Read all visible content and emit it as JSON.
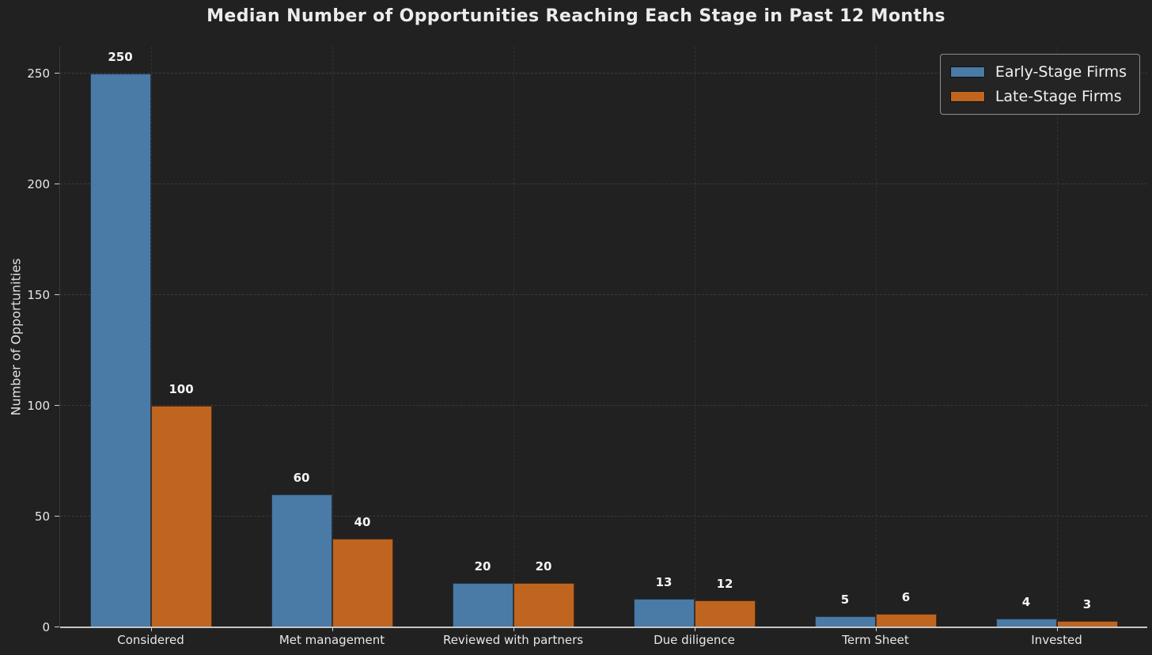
{
  "chart_data": {
    "type": "bar",
    "title": "Median Number of Opportunities Reaching Each Stage in Past 12 Months",
    "ylabel": "Number of Opportunities",
    "xlabel": "",
    "categories": [
      "Considered",
      "Met management",
      "Reviewed with partners",
      "Due diligence",
      "Term Sheet",
      "Invested"
    ],
    "series": [
      {
        "name": "Early-Stage Firms",
        "color": "#4a7aa6",
        "values": [
          250,
          60,
          20,
          13,
          5,
          4
        ]
      },
      {
        "name": "Late-Stage Firms",
        "color": "#bf6520",
        "values": [
          100,
          40,
          20,
          12,
          6,
          3
        ]
      }
    ],
    "yticks": [
      0,
      50,
      100,
      150,
      200,
      250
    ],
    "ylim": [
      0,
      262
    ],
    "grid": true,
    "grid_style": "dashed",
    "legend_position": "upper right",
    "bar_value_labels_shown": true
  },
  "colors": {
    "background": "#212121",
    "grid": "#3b3b3b",
    "axis_line": "#c6c6c6",
    "text": "#ececec"
  }
}
